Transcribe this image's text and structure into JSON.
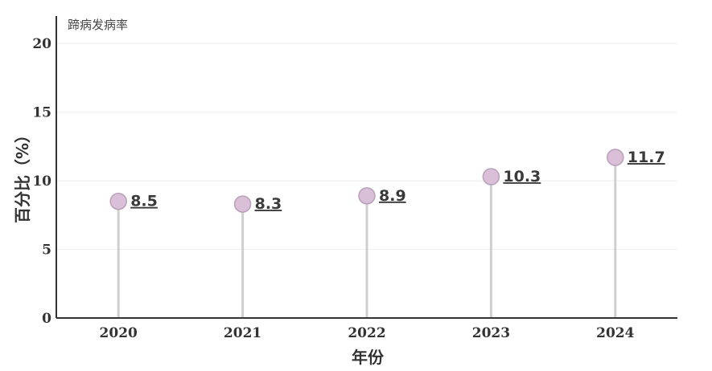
{
  "chart_data": {
    "type": "lollipop",
    "series_label": "蹄病发病率",
    "xlabel": "年份",
    "ylabel": "百分比（%）",
    "categories": [
      "2020",
      "2021",
      "2022",
      "2023",
      "2024"
    ],
    "values": [
      8.5,
      8.3,
      8.9,
      10.3,
      11.7
    ],
    "value_labels": [
      "8.5",
      "8.3",
      "8.9",
      "10.3",
      "11.7"
    ],
    "ylim": [
      0,
      22
    ],
    "yticks": [
      0,
      5,
      10,
      15,
      20
    ],
    "ytick_labels": [
      "0",
      "5",
      "10",
      "15",
      "20"
    ],
    "grid": true,
    "colors": {
      "marker_fill": "#d9bfd8",
      "marker_stroke": "#b9a0b8",
      "stem": "#cfcfcf",
      "grid": "#eeeeee",
      "axis": "#333333"
    }
  }
}
